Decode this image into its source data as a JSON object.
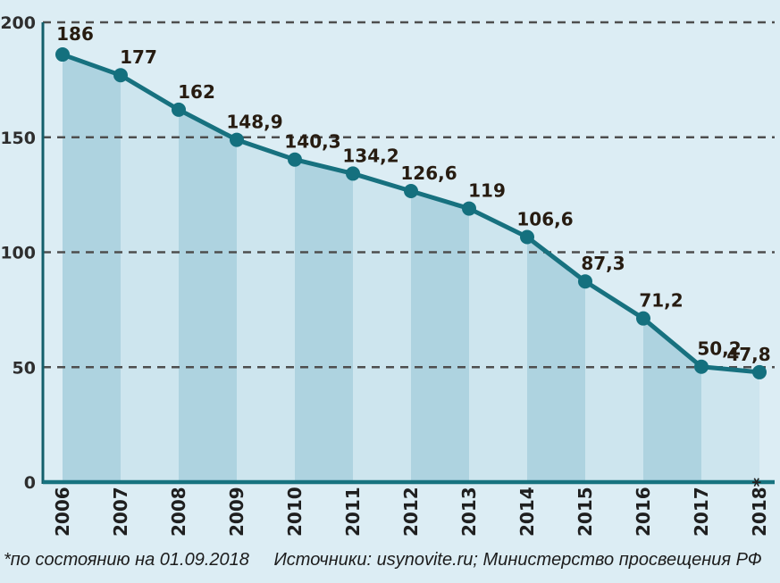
{
  "chart_data": {
    "type": "line",
    "subtype": "line-with-alternating-area-bands",
    "title": "",
    "categories": [
      "2006",
      "2007",
      "2008",
      "2009",
      "2010",
      "2011",
      "2012",
      "2013",
      "2014",
      "2015",
      "2016",
      "2017",
      "2018*"
    ],
    "values": [
      186,
      177,
      162,
      148.9,
      140.3,
      134.2,
      126.6,
      119,
      106.6,
      87.3,
      71.2,
      50.2,
      47.8
    ],
    "point_labels": [
      "186",
      "177",
      "162",
      "148,9",
      "140,3",
      "134,2",
      "126,6",
      "119",
      "106,6",
      "87,3",
      "71,2",
      "50,2",
      "47,8"
    ],
    "xlabel": "",
    "ylabel": "",
    "ylim": [
      0,
      200
    ],
    "y_ticks": [
      0,
      50,
      100,
      150,
      200
    ],
    "y_tick_labels": [
      "0",
      "50",
      "100",
      "150",
      "200"
    ],
    "grid": true,
    "gridline_style": "dashed",
    "legend": false,
    "marker": "circle",
    "colors": {
      "background": "#dcedf4",
      "band_dark": "#aed3e0",
      "band_light": "#cde5ee",
      "line": "#17717f",
      "marker": "#14707e",
      "x_axis": "#17737f",
      "y_axis": "#135f6b",
      "gridline": "#4e4e4e",
      "point_label": "#271c11",
      "tick_label": "#2e2e2e"
    }
  },
  "footer": {
    "note": "*по состоянию на 01.09.2018",
    "sources": "Источники: usynovite.ru; Министерство просвещения РФ"
  }
}
